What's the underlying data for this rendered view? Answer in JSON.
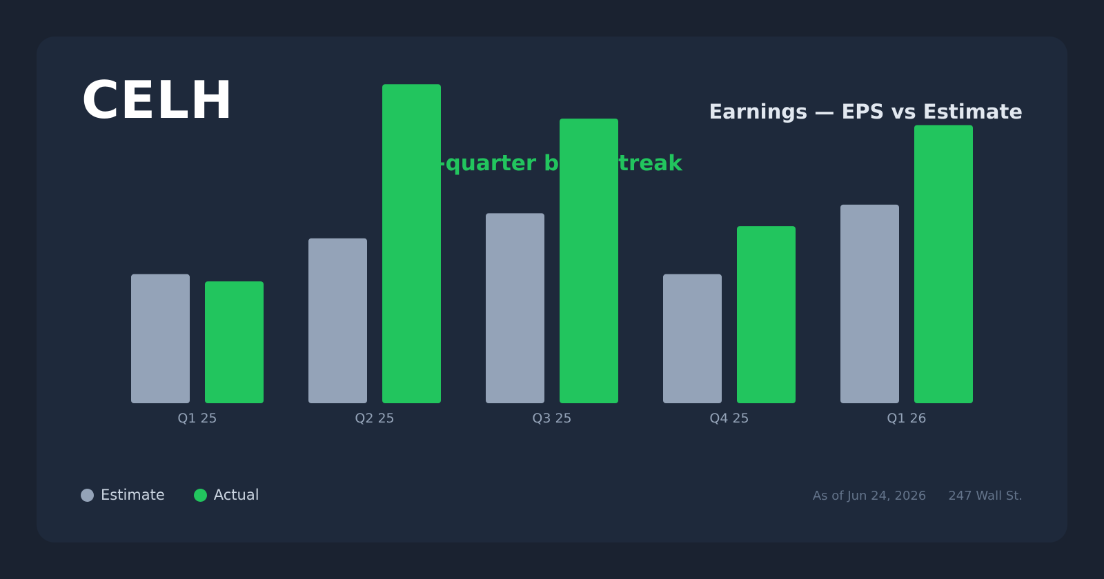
{
  "header": {
    "ticker": "CELH",
    "title": "Earnings — EPS vs Estimate",
    "streak": "4-quarter beat streak"
  },
  "legend": {
    "estimate_label": "Estimate",
    "actual_label": "Actual"
  },
  "footer": {
    "as_of": "As of Jun 24, 2026",
    "source": "247 Wall St."
  },
  "colors": {
    "estimate": "#94a3b8",
    "actual": "#22c55e",
    "tick_label": "#94a3b8"
  },
  "chart_data": {
    "type": "bar",
    "categories": [
      "Q1 25",
      "Q2 25",
      "Q3 25",
      "Q4 25",
      "Q1 26"
    ],
    "series": [
      {
        "name": "Estimate",
        "values": [
          0.18,
          0.23,
          0.265,
          0.18,
          0.277
        ]
      },
      {
        "name": "Actual",
        "values": [
          0.17,
          0.445,
          0.397,
          0.247,
          0.388
        ]
      }
    ],
    "title": "Earnings — EPS vs Estimate",
    "xlabel": "",
    "ylabel": "",
    "ylim": [
      0,
      0.5
    ],
    "grid": false,
    "legend_position": "bottom-left"
  }
}
